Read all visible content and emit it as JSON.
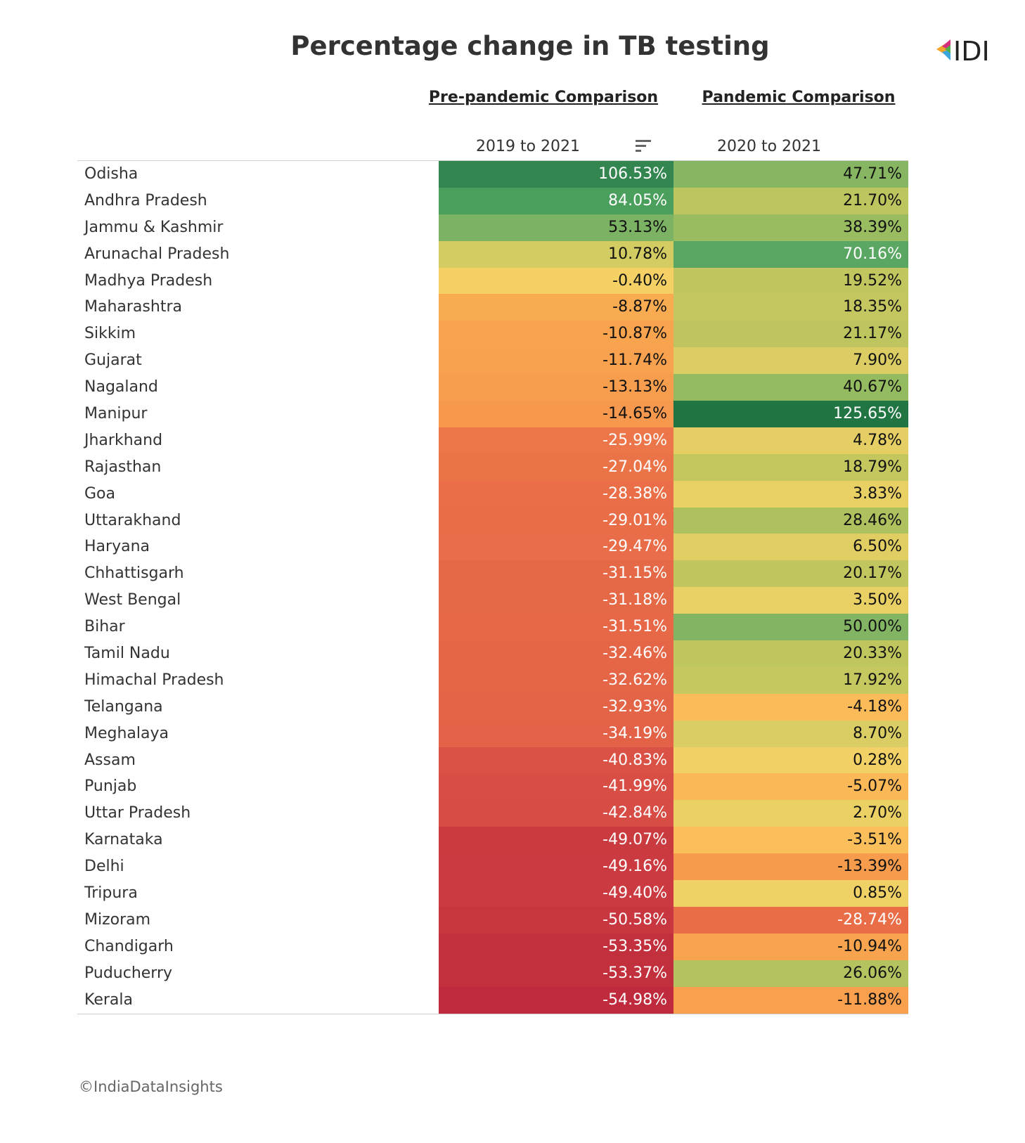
{
  "title": "Percentage change in TB testing",
  "logo": "IDI",
  "table": {
    "groups": [
      "Pre-pandemic Comparison",
      "Pandemic Comparison"
    ],
    "columns": [
      "2019 to 2021",
      "2020 to 2021"
    ],
    "rows": [
      [
        "Odisha",
        "106.53%",
        "47.71%"
      ],
      [
        "Andhra Pradesh",
        "84.05%",
        "21.70%"
      ],
      [
        "Jammu & Kashmir",
        "53.13%",
        "38.39%"
      ],
      [
        "Arunachal Pradesh",
        "10.78%",
        "70.16%"
      ],
      [
        "Madhya Pradesh",
        "-0.40%",
        "19.52%"
      ],
      [
        "Maharashtra",
        "-8.87%",
        "18.35%"
      ],
      [
        "Sikkim",
        "-10.87%",
        "21.17%"
      ],
      [
        "Gujarat",
        "-11.74%",
        "7.90%"
      ],
      [
        "Nagaland",
        "-13.13%",
        "40.67%"
      ],
      [
        "Manipur",
        "-14.65%",
        "125.65%"
      ],
      [
        "Jharkhand",
        "-25.99%",
        "4.78%"
      ],
      [
        "Rajasthan",
        "-27.04%",
        "18.79%"
      ],
      [
        "Goa",
        "-28.38%",
        "3.83%"
      ],
      [
        "Uttarakhand",
        "-29.01%",
        "28.46%"
      ],
      [
        "Haryana",
        "-29.47%",
        "6.50%"
      ],
      [
        "Chhattisgarh",
        "-31.15%",
        "20.17%"
      ],
      [
        "West Bengal",
        "-31.18%",
        "3.50%"
      ],
      [
        "Bihar",
        "-31.51%",
        "50.00%"
      ],
      [
        "Tamil Nadu",
        "-32.46%",
        "20.33%"
      ],
      [
        "Himachal Pradesh",
        "-32.62%",
        "17.92%"
      ],
      [
        "Telangana",
        "-32.93%",
        "-4.18%"
      ],
      [
        "Meghalaya",
        "-34.19%",
        "8.70%"
      ],
      [
        "Assam",
        "-40.83%",
        "0.28%"
      ],
      [
        "Punjab",
        "-41.99%",
        "-5.07%"
      ],
      [
        "Uttar Pradesh",
        "-42.84%",
        "2.70%"
      ],
      [
        "Karnataka",
        "-49.07%",
        "-3.51%"
      ],
      [
        "Delhi",
        "-49.16%",
        "-13.39%"
      ],
      [
        "Tripura",
        "-49.40%",
        "0.85%"
      ],
      [
        "Mizoram",
        "-50.58%",
        "-28.74%"
      ],
      [
        "Chandigarh",
        "-53.35%",
        "-10.94%"
      ],
      [
        "Puducherry",
        "-53.37%",
        "26.06%"
      ],
      [
        "Kerala",
        "-54.98%",
        "-11.88%"
      ]
    ]
  },
  "footer": "©IndiaDataInsights"
}
